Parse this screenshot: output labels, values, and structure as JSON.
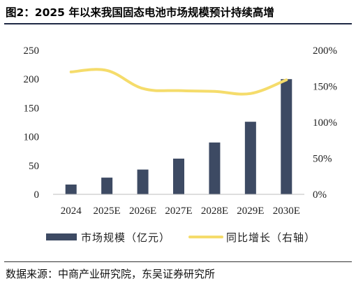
{
  "title": "图2：2025 年以来我国固态电池市场规模预计持续高增",
  "source": "数据来源：中商产业研究院，东吴证券研究所",
  "chart_data": {
    "type": "bar",
    "categories": [
      "2024",
      "2025E",
      "2026E",
      "2027E",
      "2028E",
      "2029E",
      "2030E"
    ],
    "series": [
      {
        "name": "市场规模（亿元）",
        "type": "bar",
        "axis": "left",
        "color": "#3d4a63",
        "values": [
          17,
          29,
          43,
          62,
          90,
          126,
          200
        ]
      },
      {
        "name": "同比增长（右轴）",
        "type": "line",
        "axis": "right",
        "color": "#f5dc6b",
        "values": [
          170,
          172,
          147,
          144,
          143,
          140,
          159
        ]
      }
    ],
    "y_left": {
      "lim": [
        0,
        250
      ],
      "ticks": [
        0,
        50,
        100,
        150,
        200,
        250
      ],
      "tick_labels": [
        "0",
        "50",
        "100",
        "150",
        "200",
        "250"
      ]
    },
    "y_right": {
      "lim": [
        0,
        200
      ],
      "ticks": [
        0,
        50,
        100,
        150,
        200
      ],
      "tick_labels": [
        "0%",
        "50%",
        "100%",
        "150%",
        "200%"
      ]
    },
    "grid": false,
    "legend_position": "bottom"
  }
}
